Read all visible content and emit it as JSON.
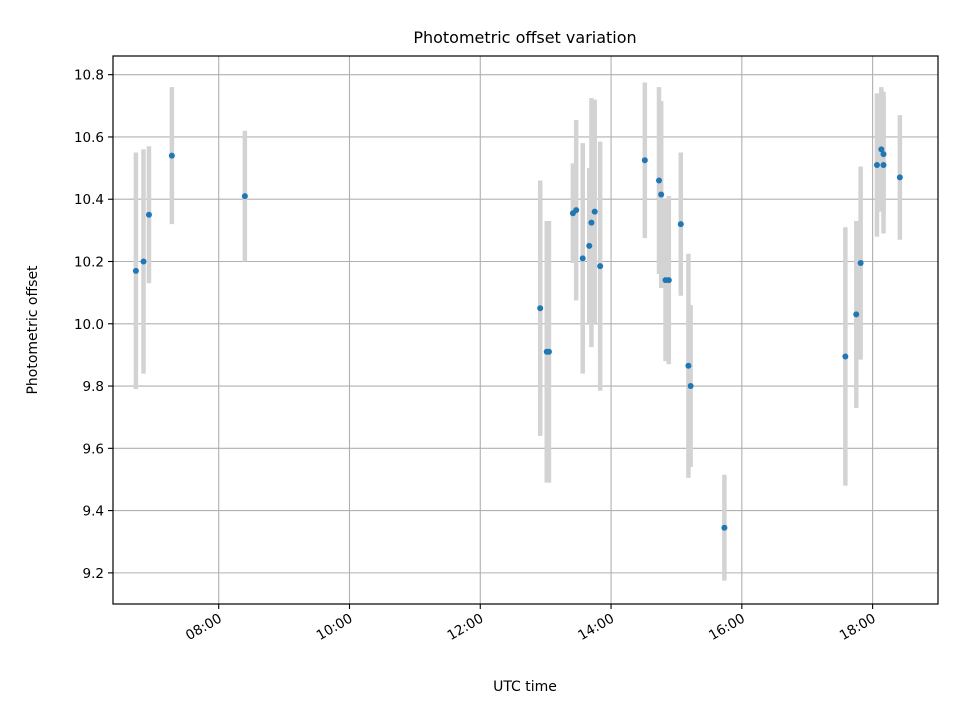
{
  "chart_data": {
    "type": "scatter",
    "title": "Photometric offset variation",
    "xlabel": "UTC time",
    "ylabel": "Photometric offset",
    "x_axis_kind": "time",
    "x_ticks": [
      "08:00",
      "10:00",
      "12:00",
      "14:00",
      "16:00",
      "18:00"
    ],
    "y_ticks": [
      "9.2",
      "9.4",
      "9.6",
      "9.8",
      "10.0",
      "10.2",
      "10.4",
      "10.6",
      "10.8"
    ],
    "xlim": [
      "06:23",
      "19:00"
    ],
    "ylim": [
      9.1,
      10.86
    ],
    "grid": true,
    "colors": {
      "point": "#1f77b4",
      "errorbar": "#d3d3d3",
      "grid": "#b0b0b0",
      "frame": "#000000"
    },
    "points": [
      {
        "time": "06:44",
        "y": 10.17,
        "err": 0.38
      },
      {
        "time": "06:51",
        "y": 10.2,
        "err": 0.36
      },
      {
        "time": "06:56",
        "y": 10.35,
        "err": 0.22
      },
      {
        "time": "07:17",
        "y": 10.54,
        "err": 0.22
      },
      {
        "time": "08:24",
        "y": 10.41,
        "err": 0.21
      },
      {
        "time": "12:55",
        "y": 10.05,
        "err": 0.41
      },
      {
        "time": "13:01",
        "y": 9.91,
        "err": 0.42
      },
      {
        "time": "13:03",
        "y": 9.91,
        "err": 0.42
      },
      {
        "time": "13:25",
        "y": 10.355,
        "err": 0.16
      },
      {
        "time": "13:28",
        "y": 10.365,
        "err": 0.29
      },
      {
        "time": "13:34",
        "y": 10.21,
        "err": 0.37
      },
      {
        "time": "13:40",
        "y": 10.25,
        "err": 0.25
      },
      {
        "time": "13:42",
        "y": 10.325,
        "err": 0.4
      },
      {
        "time": "13:45",
        "y": 10.36,
        "err": 0.36
      },
      {
        "time": "13:50",
        "y": 10.185,
        "err": 0.4
      },
      {
        "time": "14:31",
        "y": 10.525,
        "err": 0.25
      },
      {
        "time": "14:44",
        "y": 10.46,
        "err": 0.3
      },
      {
        "time": "14:46",
        "y": 10.415,
        "err": 0.3
      },
      {
        "time": "14:50",
        "y": 10.14,
        "err": 0.26
      },
      {
        "time": "14:53",
        "y": 10.14,
        "err": 0.27
      },
      {
        "time": "15:04",
        "y": 10.32,
        "err": 0.23
      },
      {
        "time": "15:11",
        "y": 9.865,
        "err": 0.36
      },
      {
        "time": "15:13",
        "y": 9.8,
        "err": 0.26
      },
      {
        "time": "15:44",
        "y": 9.345,
        "err": 0.17
      },
      {
        "time": "17:35",
        "y": 9.895,
        "err": 0.415
      },
      {
        "time": "17:45",
        "y": 10.03,
        "err": 0.3
      },
      {
        "time": "17:49",
        "y": 10.195,
        "err": 0.31
      },
      {
        "time": "18:04",
        "y": 10.51,
        "err": 0.23
      },
      {
        "time": "18:08",
        "y": 10.56,
        "err": 0.2
      },
      {
        "time": "18:10",
        "y": 10.545,
        "err": 0.2
      },
      {
        "time": "18:10",
        "y": 10.51,
        "err": 0.22
      },
      {
        "time": "18:25",
        "y": 10.47,
        "err": 0.2
      }
    ]
  }
}
